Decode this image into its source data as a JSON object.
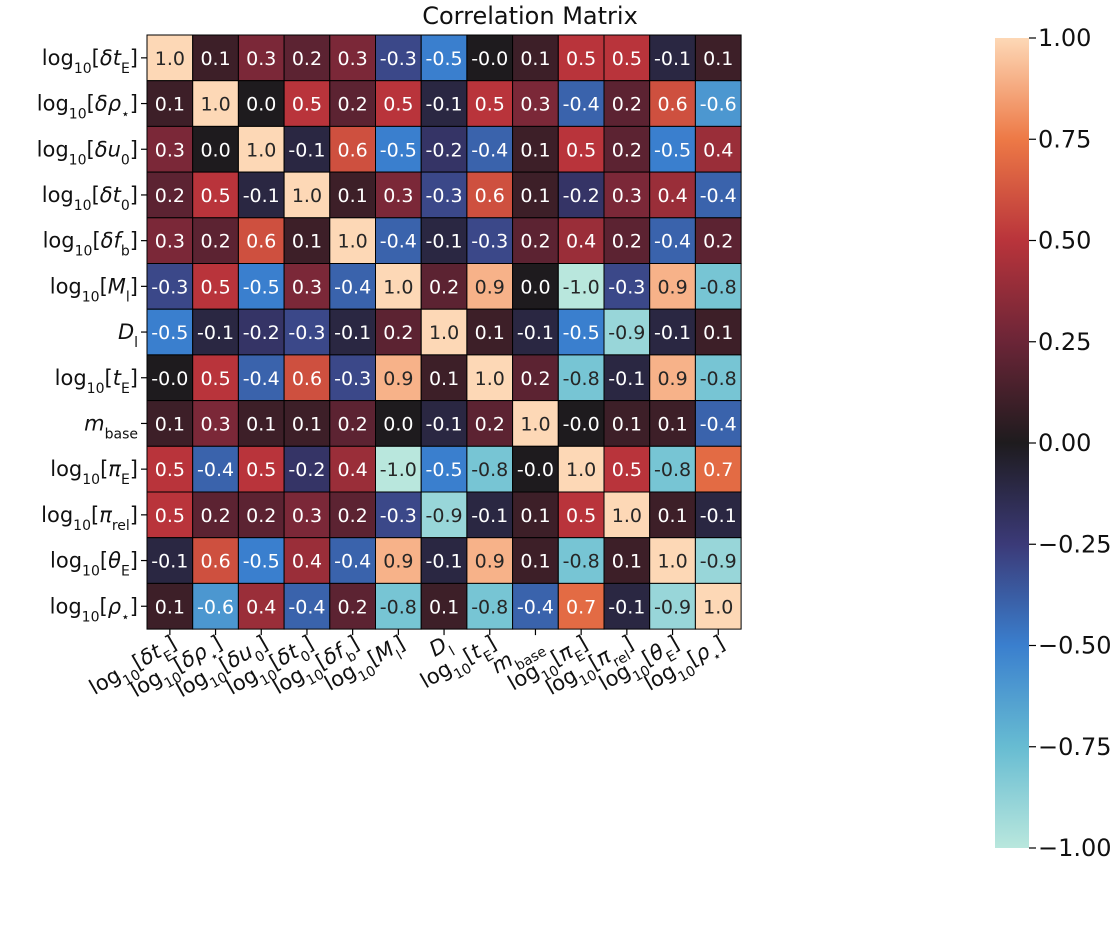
{
  "chart_data": {
    "type": "heatmap",
    "title": "Correlation Matrix",
    "labels": [
      {
        "base": "log",
        "sub": "10",
        "open": "[",
        "pre": "δ",
        "main": "t",
        "msub": "E",
        "close": "]"
      },
      {
        "base": "log",
        "sub": "10",
        "open": "[",
        "pre": "δ",
        "main": "ρ",
        "msub": "⋆",
        "close": "]"
      },
      {
        "base": "log",
        "sub": "10",
        "open": "[",
        "pre": "δ",
        "main": "u",
        "msub": "0",
        "close": "]"
      },
      {
        "base": "log",
        "sub": "10",
        "open": "[",
        "pre": "δ",
        "main": "t",
        "msub": "0",
        "close": "]"
      },
      {
        "base": "log",
        "sub": "10",
        "open": "[",
        "pre": "δ",
        "main": "f",
        "msub": "b",
        "close": "]"
      },
      {
        "base": "log",
        "sub": "10",
        "open": "[",
        "pre": "",
        "main": "M",
        "msub": "l",
        "close": "]"
      },
      {
        "base": "",
        "sub": "",
        "open": "",
        "pre": "",
        "main": "D",
        "msub": "l",
        "close": ""
      },
      {
        "base": "log",
        "sub": "10",
        "open": "[",
        "pre": "",
        "main": "t",
        "msub": "E",
        "close": "]"
      },
      {
        "base": "",
        "sub": "",
        "open": "",
        "pre": "",
        "main": "m",
        "msub": "base",
        "close": ""
      },
      {
        "base": "log",
        "sub": "10",
        "open": "[",
        "pre": "",
        "main": "π",
        "msub": "E",
        "close": "]"
      },
      {
        "base": "log",
        "sub": "10",
        "open": "[",
        "pre": "",
        "main": "π",
        "msub": "rel",
        "close": "]"
      },
      {
        "base": "log",
        "sub": "10",
        "open": "[",
        "pre": "",
        "main": "θ",
        "msub": "E",
        "close": "]"
      },
      {
        "base": "log",
        "sub": "10",
        "open": "[",
        "pre": "",
        "main": "ρ",
        "msub": "⋆",
        "close": "]"
      }
    ],
    "values": [
      [
        1.0,
        0.1,
        0.3,
        0.2,
        0.3,
        -0.3,
        -0.5,
        -0.0,
        0.1,
        0.5,
        0.5,
        -0.1,
        0.1
      ],
      [
        0.1,
        1.0,
        0.0,
        0.5,
        0.2,
        0.5,
        -0.1,
        0.5,
        0.3,
        -0.4,
        0.2,
        0.6,
        -0.6
      ],
      [
        0.3,
        0.0,
        1.0,
        -0.1,
        0.6,
        -0.5,
        -0.2,
        -0.4,
        0.1,
        0.5,
        0.2,
        -0.5,
        0.4
      ],
      [
        0.2,
        0.5,
        -0.1,
        1.0,
        0.1,
        0.3,
        -0.3,
        0.6,
        0.1,
        -0.2,
        0.3,
        0.4,
        -0.4
      ],
      [
        0.3,
        0.2,
        0.6,
        0.1,
        1.0,
        -0.4,
        -0.1,
        -0.3,
        0.2,
        0.4,
        0.2,
        -0.4,
        0.2
      ],
      [
        -0.3,
        0.5,
        -0.5,
        0.3,
        -0.4,
        1.0,
        0.2,
        0.9,
        0.0,
        -1.0,
        -0.3,
        0.9,
        -0.8
      ],
      [
        -0.5,
        -0.1,
        -0.2,
        -0.3,
        -0.1,
        0.2,
        1.0,
        0.1,
        -0.1,
        -0.5,
        -0.9,
        -0.1,
        0.1
      ],
      [
        -0.0,
        0.5,
        -0.4,
        0.6,
        -0.3,
        0.9,
        0.1,
        1.0,
        0.2,
        -0.8,
        -0.1,
        0.9,
        -0.8
      ],
      [
        0.1,
        0.3,
        0.1,
        0.1,
        0.2,
        0.0,
        -0.1,
        0.2,
        1.0,
        -0.0,
        0.1,
        0.1,
        -0.4
      ],
      [
        0.5,
        -0.4,
        0.5,
        -0.2,
        0.4,
        -1.0,
        -0.5,
        -0.8,
        -0.0,
        1.0,
        0.5,
        -0.8,
        0.7
      ],
      [
        0.5,
        0.2,
        0.2,
        0.3,
        0.2,
        -0.3,
        -0.9,
        -0.1,
        0.1,
        0.5,
        1.0,
        0.1,
        -0.1
      ],
      [
        -0.1,
        0.6,
        -0.5,
        0.4,
        -0.4,
        0.9,
        -0.1,
        0.9,
        0.1,
        -0.8,
        0.1,
        1.0,
        -0.9
      ],
      [
        0.1,
        -0.6,
        0.4,
        -0.4,
        0.2,
        -0.8,
        0.1,
        -0.8,
        -0.4,
        0.7,
        -0.1,
        -0.9,
        1.0
      ]
    ],
    "colorbar": {
      "range": [
        -1.0,
        1.0
      ],
      "ticks": [
        1.0,
        0.75,
        0.5,
        0.25,
        0.0,
        -0.25,
        -0.5,
        -0.75,
        -1.0
      ],
      "tick_labels": [
        "1.00",
        "0.75",
        "0.50",
        "0.25",
        "0.00",
        "−0.25",
        "−0.50",
        "−0.75",
        "−1.00"
      ]
    },
    "colormap_stops": [
      {
        "v": -1.0,
        "color": "#b9e7dd"
      },
      {
        "v": -0.75,
        "color": "#67bcd2"
      },
      {
        "v": -0.5,
        "color": "#3a7fce"
      },
      {
        "v": -0.25,
        "color": "#3b3a78"
      },
      {
        "v": 0.0,
        "color": "#1e1b1e"
      },
      {
        "v": 0.25,
        "color": "#6b2537"
      },
      {
        "v": 0.5,
        "color": "#b9343b"
      },
      {
        "v": 0.75,
        "color": "#ed7946"
      },
      {
        "v": 1.0,
        "color": "#fdd8b6"
      }
    ]
  }
}
